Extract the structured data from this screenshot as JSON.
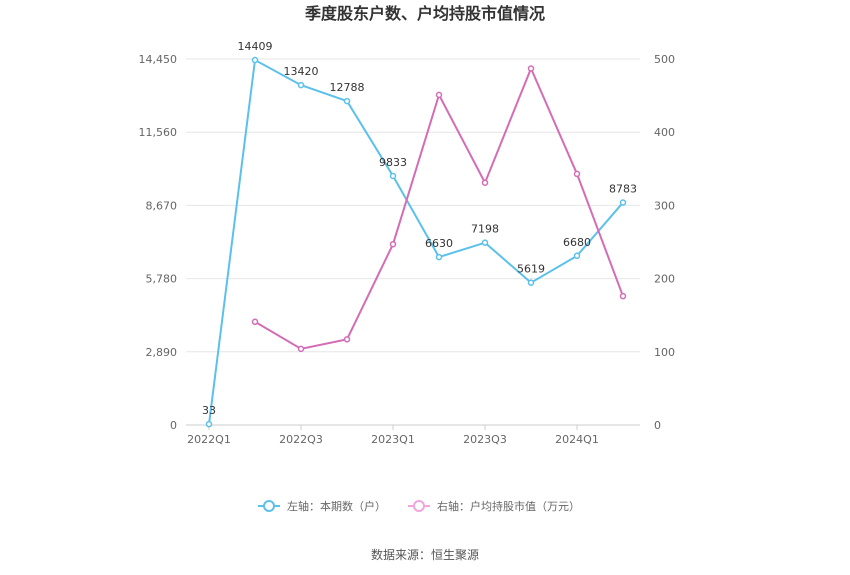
{
  "chart_data": {
    "type": "line",
    "title": "季度股东户数、户均持股市值情况",
    "categories": [
      "2022Q1",
      "2022Q2",
      "2022Q3",
      "2022Q4",
      "2023Q1",
      "2023Q2",
      "2023Q3",
      "2023Q4",
      "2024Q1",
      "2024Q2"
    ],
    "x_tick_labels": [
      "2022Q1",
      "2022Q3",
      "2023Q1",
      "2023Q3",
      "2024Q1"
    ],
    "y_left": {
      "ticks": [
        "0",
        "2,890",
        "5,780",
        "8,670",
        "11,560",
        "14,450"
      ],
      "ylim": [
        0,
        14450
      ]
    },
    "y_right": {
      "ticks": [
        "0",
        "100",
        "200",
        "300",
        "400",
        "500"
      ],
      "ylim": [
        0,
        500
      ]
    },
    "series": [
      {
        "name": "左轴：本期数（户）",
        "axis": "left",
        "color": "#5bc0eb",
        "values": [
          33,
          14409,
          13420,
          12788,
          9833,
          6630,
          7198,
          5619,
          6680,
          8783
        ],
        "labels": [
          "33",
          "14409",
          "13420",
          "12788",
          "9833",
          "6630",
          "7198",
          "5619",
          "6680",
          "8783"
        ]
      },
      {
        "name": "右轴：户均持股市值（万元）",
        "axis": "right",
        "color": "#d36db5",
        "values": [
          null,
          141,
          104,
          117,
          247,
          451,
          331,
          487,
          343,
          176
        ]
      }
    ],
    "grid": true,
    "legend_position": "bottom"
  },
  "source": "数据来源：恒生聚源"
}
